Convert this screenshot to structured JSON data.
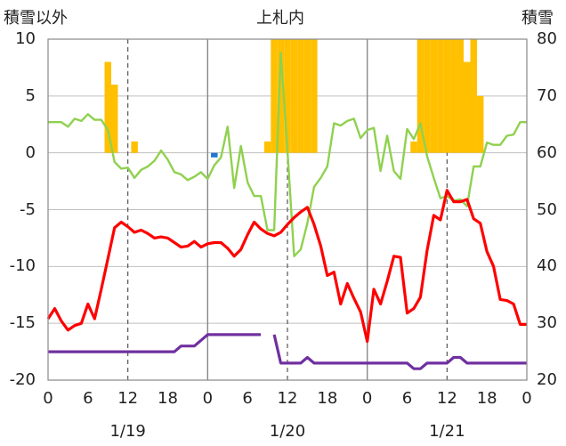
{
  "chart_data": {
    "type": "line",
    "title": "上札内",
    "ylabel_left": "積雪以外",
    "ylabel_right": "積雪",
    "ylim": [
      -20,
      10
    ],
    "yticks": [
      10,
      5,
      0,
      -5,
      -10,
      -15,
      -20
    ],
    "ylim_right": [
      20,
      80
    ],
    "yticks_right": [
      80,
      70,
      60,
      50,
      40,
      30,
      20
    ],
    "xlim": [
      0,
      72
    ],
    "xticks": [
      0,
      6,
      12,
      18,
      24,
      30,
      36,
      42,
      48,
      54,
      60,
      66,
      72
    ],
    "xtick_labels": [
      "0",
      "6",
      "12",
      "18",
      "0",
      "6",
      "12",
      "18",
      "0",
      "6",
      "12",
      "18",
      "0"
    ],
    "date_labels": [
      {
        "x": 12,
        "label": "1/19"
      },
      {
        "x": 36,
        "label": "1/20"
      },
      {
        "x": 60,
        "label": "1/21"
      }
    ],
    "grid": {
      "x_dashed_at": [
        12,
        36,
        60
      ],
      "x_solid_at": [
        24,
        48
      ],
      "y": true
    },
    "series": [
      {
        "key": "precip",
        "kind": "bar",
        "color": "#ffc000",
        "x": [
          9,
          10,
          13,
          33,
          34,
          35,
          36,
          37,
          38,
          39,
          40,
          55,
          56,
          57,
          58,
          59,
          60,
          61,
          62,
          63,
          64,
          65
        ],
        "values": [
          8,
          6,
          1,
          1,
          10,
          10,
          10,
          10,
          10,
          10,
          10,
          1,
          10,
          10,
          10,
          10,
          10,
          10,
          10,
          8,
          10,
          5
        ]
      },
      {
        "key": "precip_blue",
        "kind": "bar",
        "color": "#1f77d0",
        "x": [
          25
        ],
        "values": [
          -0.4
        ]
      },
      {
        "key": "wind",
        "kind": "line",
        "axis": "left",
        "color": "#8fd14f",
        "x": [
          0,
          1,
          2,
          3,
          4,
          5,
          6,
          7,
          8,
          9,
          10,
          11,
          12,
          13,
          14,
          15,
          16,
          17,
          18,
          19,
          20,
          21,
          22,
          23,
          24,
          25,
          26,
          27,
          28,
          29,
          30,
          31,
          32,
          33,
          34,
          35,
          36,
          37,
          38,
          39,
          40,
          41,
          42,
          43,
          44,
          45,
          46,
          47,
          48,
          49,
          50,
          51,
          52,
          53,
          54,
          55,
          56,
          57,
          58,
          59,
          60,
          61,
          62,
          63,
          64,
          65,
          66,
          67,
          68,
          69,
          70,
          71,
          72
        ],
        "values": [
          2.7,
          2.7,
          2.7,
          2.3,
          3.0,
          2.8,
          3.4,
          2.9,
          2.9,
          2.0,
          -0.8,
          -1.4,
          -1.3,
          -2.2,
          -1.5,
          -1.2,
          -0.7,
          0.2,
          -0.6,
          -1.7,
          -1.9,
          -2.4,
          -2.1,
          -1.7,
          -2.3,
          -1.1,
          -0.4,
          2.3,
          -3.1,
          0.6,
          -2.6,
          -3.8,
          -3.8,
          -6.8,
          -6.8,
          8.8,
          0.2,
          -9.1,
          -8.5,
          -6.2,
          -3.0,
          -2.2,
          -1.2,
          2.6,
          2.4,
          2.8,
          3.0,
          1.3,
          2.0,
          2.2,
          -1.6,
          1.5,
          -1.6,
          -2.3,
          2.1,
          1.2,
          2.6,
          -0.3,
          -2.2,
          -4.0,
          -3.8,
          -4.2,
          -4.1,
          -4.7,
          -1.2,
          -1.2,
          0.9,
          0.7,
          0.7,
          1.5,
          1.6,
          2.7,
          2.7
        ]
      },
      {
        "key": "temperature",
        "kind": "line",
        "axis": "left",
        "color": "#ff0000",
        "x": [
          0,
          1,
          2,
          3,
          4,
          5,
          6,
          7,
          8,
          9,
          10,
          11,
          12,
          13,
          14,
          15,
          16,
          17,
          18,
          19,
          20,
          21,
          22,
          23,
          24,
          25,
          26,
          27,
          28,
          29,
          30,
          31,
          32,
          33,
          34,
          35,
          36,
          37,
          38,
          39,
          40,
          41,
          42,
          43,
          44,
          45,
          46,
          47,
          48,
          49,
          50,
          51,
          52,
          53,
          54,
          55,
          56,
          57,
          58,
          59,
          60,
          61,
          62,
          63,
          64,
          65,
          66,
          67,
          68,
          69,
          70,
          71,
          72
        ],
        "values": [
          -14.6,
          -13.7,
          -14.8,
          -15.6,
          -15.2,
          -15.0,
          -13.3,
          -14.6,
          -12.0,
          -9.3,
          -6.6,
          -6.1,
          -6.5,
          -7.0,
          -6.8,
          -7.1,
          -7.5,
          -7.4,
          -7.5,
          -7.9,
          -8.3,
          -8.2,
          -7.8,
          -8.3,
          -8.0,
          -7.9,
          -7.9,
          -8.4,
          -9.1,
          -8.5,
          -7.2,
          -6.1,
          -6.7,
          -7.1,
          -7.3,
          -7.0,
          -6.3,
          -5.7,
          -5.2,
          -4.8,
          -6.3,
          -8.2,
          -10.8,
          -10.5,
          -13.3,
          -11.5,
          -12.8,
          -14.0,
          -16.6,
          -12.0,
          -13.3,
          -11.3,
          -9.1,
          -9.2,
          -14.1,
          -13.7,
          -12.7,
          -8.6,
          -5.5,
          -5.9,
          -3.3,
          -4.3,
          -4.3,
          -4.1,
          -5.8,
          -6.2,
          -8.7,
          -10.0,
          -12.9,
          -13.0,
          -13.3,
          -15.1,
          -15.1
        ]
      },
      {
        "key": "snow_depth",
        "kind": "line",
        "axis": "right",
        "color": "#7030a0",
        "x": [
          0,
          1,
          2,
          3,
          4,
          5,
          6,
          7,
          8,
          9,
          10,
          11,
          12,
          13,
          14,
          15,
          16,
          17,
          18,
          19,
          20,
          21,
          22,
          23,
          24,
          25,
          26,
          27,
          28,
          29,
          30,
          31,
          32,
          33,
          34,
          35,
          36,
          37,
          38,
          39,
          40,
          41,
          42,
          43,
          44,
          45,
          46,
          47,
          48,
          49,
          50,
          51,
          52,
          53,
          54,
          55,
          56,
          57,
          58,
          59,
          60,
          61,
          62,
          63,
          64,
          65,
          66,
          67,
          68,
          69,
          70,
          71,
          72
        ],
        "values": [
          25,
          25,
          25,
          25,
          25,
          25,
          25,
          25,
          25,
          25,
          25,
          25,
          25,
          25,
          25,
          25,
          25,
          25,
          25,
          25,
          26,
          26,
          26,
          27,
          28,
          28,
          28,
          28,
          28,
          28,
          28,
          28,
          28,
          null,
          28,
          23,
          23,
          23,
          23,
          24,
          23,
          23,
          23,
          23,
          23,
          23,
          23,
          23,
          23,
          23,
          23,
          23,
          23,
          23,
          23,
          22,
          22,
          23,
          23,
          23,
          23,
          24,
          24,
          23,
          23,
          23,
          23,
          23,
          23,
          23,
          23,
          23,
          23
        ]
      }
    ]
  }
}
